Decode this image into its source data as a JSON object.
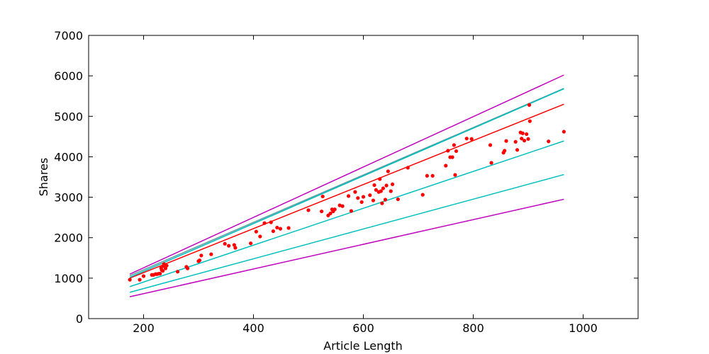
{
  "chart_data": {
    "type": "scatter",
    "title": "",
    "xlabel": "Article Length",
    "ylabel": "Shares",
    "xlim": [
      100,
      1100
    ],
    "ylim": [
      0,
      7000
    ],
    "x_ticks": [
      "200",
      "400",
      "600",
      "800",
      "1000"
    ],
    "y_ticks": [
      "0",
      "1000",
      "2000",
      "3000",
      "4000",
      "5000",
      "6000",
      "7000"
    ],
    "grid": false,
    "legend": "none",
    "series": [
      {
        "kind": "points",
        "color": "#ff0000",
        "x": [
          175,
          193,
          200,
          215,
          218,
          222,
          225,
          228,
          230,
          232,
          233,
          235,
          236,
          237,
          240,
          242,
          262,
          278,
          280,
          300,
          302,
          305,
          323,
          348,
          355,
          365,
          367,
          395,
          405,
          412,
          420,
          432,
          436,
          443,
          449,
          464,
          500,
          524,
          526,
          536,
          540,
          543,
          545,
          548,
          557,
          562,
          573,
          578,
          585,
          590,
          597,
          600,
          612,
          618,
          620,
          623,
          628,
          630,
          632,
          634,
          636,
          640,
          642,
          645,
          650,
          653,
          663,
          681,
          708,
          716,
          726,
          750,
          754,
          758,
          762,
          765,
          767,
          769,
          788,
          797,
          831,
          833,
          855,
          857,
          860,
          877,
          880,
          886,
          888,
          890,
          893,
          897,
          900,
          902,
          903,
          937,
          965
        ],
        "y": [
          960,
          960,
          1050,
          1080,
          1080,
          1100,
          1100,
          1110,
          1110,
          1250,
          1200,
          1180,
          1300,
          1350,
          1240,
          1310,
          1160,
          1280,
          1240,
          1420,
          1440,
          1560,
          1590,
          1850,
          1800,
          1820,
          1750,
          1860,
          2150,
          2030,
          2360,
          2380,
          2160,
          2250,
          2220,
          2240,
          2680,
          2650,
          3020,
          2550,
          2600,
          2700,
          2650,
          2700,
          2800,
          2780,
          3030,
          2660,
          3130,
          2980,
          2880,
          3010,
          3050,
          2920,
          3300,
          3180,
          3130,
          3450,
          3150,
          2850,
          3220,
          2940,
          3290,
          3640,
          3150,
          3320,
          2950,
          3730,
          3060,
          3530,
          3530,
          3780,
          4150,
          3990,
          3990,
          4290,
          3550,
          4140,
          4450,
          4440,
          4290,
          3850,
          4100,
          4150,
          4390,
          4370,
          4170,
          4600,
          4450,
          4580,
          4400,
          4560,
          4440,
          5280,
          4880,
          4380,
          4620
        ]
      },
      {
        "kind": "line",
        "color": "#ff0000",
        "x": [
          175,
          965
        ],
        "y": [
          1000,
          5300
        ]
      },
      {
        "kind": "line",
        "color": "#5f9ea0",
        "x": [
          175,
          965
        ],
        "y": [
          1060,
          5690
        ]
      },
      {
        "kind": "line",
        "color": "#00bfbf",
        "x": [
          175,
          965
        ],
        "y": [
          1020,
          5680
        ]
      },
      {
        "kind": "line",
        "color": "#00bfbf",
        "x": [
          175,
          965
        ],
        "y": [
          790,
          4390
        ]
      },
      {
        "kind": "line",
        "color": "#00bfbf",
        "x": [
          175,
          965
        ],
        "y": [
          650,
          3560
        ]
      },
      {
        "kind": "line",
        "color": "#bf00bf",
        "x": [
          175,
          965
        ],
        "y": [
          1100,
          6020
        ]
      },
      {
        "kind": "line",
        "color": "#bf00bf",
        "x": [
          175,
          965
        ],
        "y": [
          540,
          2950
        ]
      }
    ]
  }
}
